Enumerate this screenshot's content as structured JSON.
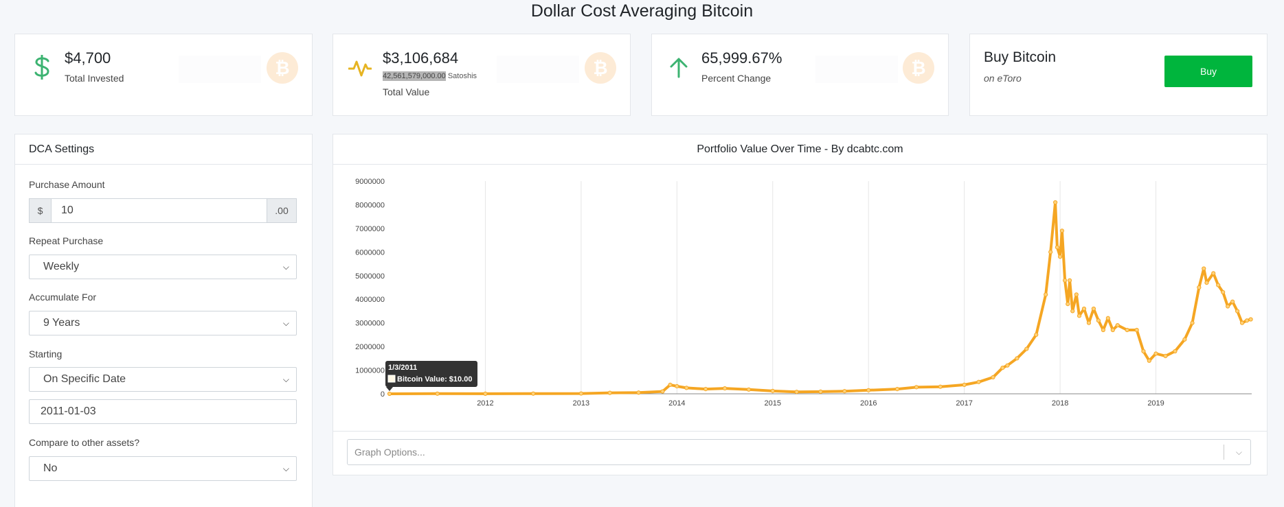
{
  "page": {
    "title": "Dollar Cost Averaging Bitcoin"
  },
  "stats": {
    "invested": {
      "value": "$4,700",
      "label": "Total Invested",
      "icon": "dollar-icon"
    },
    "total_value": {
      "value": "$3,106,684",
      "satoshis": "42,561,579,000.00",
      "satoshis_unit": "Satoshis",
      "label": "Total Value",
      "icon": "pulse-icon"
    },
    "change": {
      "value": "65,999.67%",
      "label": "Percent Change",
      "icon": "arrow-up-icon"
    },
    "btc_glyph": "₿",
    "badge_color": "#fdebd6"
  },
  "buy": {
    "title": "Buy Bitcoin",
    "subtitle": "on eToro",
    "button_label": "Buy"
  },
  "settings": {
    "title": "DCA Settings",
    "purchase_amount": {
      "label": "Purchase Amount",
      "prefix": "$",
      "value": "10",
      "suffix": ".00"
    },
    "repeat": {
      "label": "Repeat Purchase",
      "value": "Weekly"
    },
    "accumulate": {
      "label": "Accumulate For",
      "value": "9 Years"
    },
    "starting": {
      "label": "Starting",
      "value": "On Specific Date",
      "date": "2011-01-03"
    },
    "compare": {
      "label": "Compare to other assets?",
      "value": "No"
    }
  },
  "chart": {
    "title": "Portfolio Value Over Time - By dcabtc.com",
    "graph_options_placeholder": "Graph Options...",
    "line_color": "#f5a623",
    "tooltip": {
      "date": "1/3/2011",
      "text": "Bitcoin Value: $10.00"
    }
  },
  "chart_data": {
    "type": "line",
    "series": [
      {
        "name": "Bitcoin Value",
        "x": [
          2011.0,
          2011.5,
          2012.0,
          2012.5,
          2013.0,
          2013.3,
          2013.6,
          2013.85,
          2013.93,
          2014.0,
          2014.1,
          2014.3,
          2014.5,
          2014.75,
          2015.0,
          2015.25,
          2015.5,
          2015.75,
          2016.0,
          2016.3,
          2016.5,
          2016.75,
          2017.0,
          2017.15,
          2017.3,
          2017.4,
          2017.45,
          2017.55,
          2017.65,
          2017.75,
          2017.85,
          2017.9,
          2017.95,
          2017.97,
          2018.0,
          2018.02,
          2018.05,
          2018.08,
          2018.1,
          2018.13,
          2018.17,
          2018.2,
          2018.25,
          2018.3,
          2018.35,
          2018.4,
          2018.45,
          2018.5,
          2018.55,
          2018.6,
          2018.7,
          2018.8,
          2018.87,
          2018.93,
          2019.0,
          2019.1,
          2019.2,
          2019.3,
          2019.38,
          2019.45,
          2019.5,
          2019.53,
          2019.6,
          2019.65,
          2019.7,
          2019.75,
          2019.8,
          2019.85,
          2019.9,
          2019.95,
          2019.99
        ],
        "values": [
          10,
          5000,
          3000,
          8000,
          12000,
          40000,
          50000,
          100000,
          380000,
          320000,
          250000,
          200000,
          230000,
          180000,
          120000,
          80000,
          90000,
          110000,
          150000,
          200000,
          280000,
          300000,
          380000,
          500000,
          700000,
          1100000,
          1200000,
          1500000,
          1900000,
          2500000,
          4200000,
          6000000,
          8100000,
          6200000,
          5800000,
          6900000,
          4800000,
          3800000,
          4800000,
          3500000,
          4200000,
          3300000,
          3600000,
          3000000,
          3600000,
          3100000,
          2700000,
          3200000,
          2700000,
          2900000,
          2700000,
          2700000,
          1800000,
          1400000,
          1700000,
          1600000,
          1800000,
          2300000,
          3000000,
          4500000,
          5300000,
          4700000,
          5100000,
          4600000,
          4300000,
          3700000,
          3900000,
          3500000,
          3000000,
          3100000,
          3150000
        ]
      }
    ],
    "x_ticks": [
      "2012",
      "2013",
      "2014",
      "2015",
      "2016",
      "2017",
      "2018",
      "2019"
    ],
    "y_ticks": [
      "0",
      "1000000",
      "2000000",
      "3000000",
      "4000000",
      "5000000",
      "6000000",
      "7000000",
      "8000000",
      "9000000"
    ],
    "xlim": [
      2011.0,
      2020.0
    ],
    "ylim": [
      0,
      9000000
    ],
    "grid": "vertical"
  }
}
